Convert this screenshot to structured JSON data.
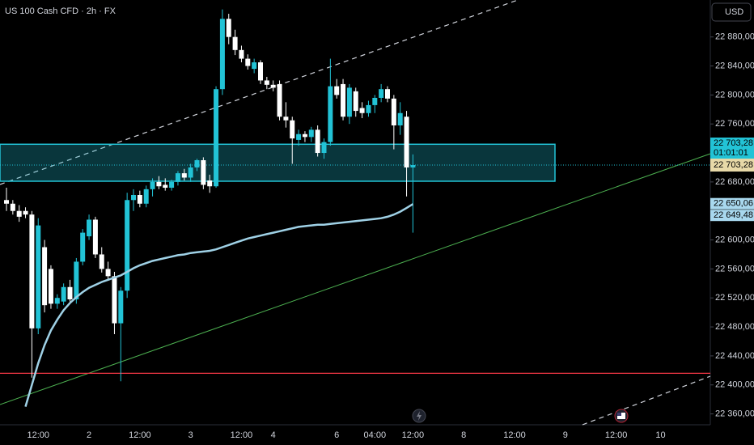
{
  "chart_data": {
    "type": "candlestick",
    "title": "US 100 Cash CFD · 2h · FX",
    "currency": "USD",
    "categories": [
      null,
      null,
      null,
      null,
      null,
      "12:00",
      null,
      null,
      null,
      null,
      null,
      null,
      null,
      "2",
      null,
      null,
      null,
      null,
      null,
      null,
      null,
      "12:00",
      null,
      null,
      null,
      null,
      null,
      null,
      null,
      "3",
      null,
      null,
      null,
      null,
      null,
      null,
      null,
      "12:00",
      null,
      null,
      null,
      null,
      "4",
      null,
      null,
      null,
      null,
      null,
      null,
      null,
      null,
      null,
      "6",
      null,
      null,
      null,
      null,
      null,
      "04:00",
      null,
      null,
      null,
      null,
      null,
      "12:00",
      null,
      null,
      null,
      null,
      null,
      null,
      null,
      "8",
      null,
      null,
      null,
      null,
      null,
      null,
      null,
      "12:00",
      null,
      null,
      null,
      null,
      null,
      null,
      null,
      "9",
      null,
      null,
      null,
      null,
      null,
      null,
      null,
      "12:00",
      null,
      null,
      null,
      null,
      null,
      null,
      "10"
    ],
    "open": [
      22655,
      22650,
      22640,
      22640,
      22635,
      22478,
      22590,
      22560,
      22512,
      22515,
      22535,
      22518,
      22570,
      22605,
      22628,
      22580,
      22560,
      22550,
      22485,
      22530,
      22655,
      22662,
      22650,
      22670,
      22680,
      22676,
      22672,
      22680,
      22692,
      22686,
      22700,
      22710,
      22682,
      22674,
      22808,
      22905,
      22880,
      22862,
      22850,
      22836,
      22845,
      22820,
      22814,
      22815,
      22770,
      22765,
      22738,
      22746,
      22742,
      22752,
      22720,
      22735,
      22812,
      22815,
      22770,
      22805,
      22782,
      22775,
      22786,
      22796,
      22808,
      22795,
      22758,
      22770,
      22700,
      null,
      null,
      null,
      null,
      null,
      null,
      null,
      null,
      null,
      null,
      null,
      null,
      null,
      null,
      null,
      null,
      null,
      null,
      null,
      null,
      null,
      null,
      null,
      null,
      null,
      null,
      null,
      null,
      null,
      null,
      null,
      null,
      null,
      null,
      null,
      null,
      null,
      null,
      null
    ],
    "high": [
      22672,
      22655,
      22648,
      22645,
      22640,
      22630,
      22600,
      22565,
      22525,
      22540,
      22545,
      22575,
      22615,
      22635,
      22632,
      22590,
      22570,
      22556,
      22535,
      22665,
      22670,
      22668,
      22675,
      22685,
      22688,
      22685,
      22683,
      22695,
      22698,
      22705,
      22712,
      22714,
      22690,
      22812,
      22918,
      22912,
      22890,
      22868,
      22856,
      22850,
      22848,
      22825,
      22820,
      22820,
      22790,
      22770,
      22752,
      22750,
      22756,
      22758,
      22740,
      22850,
      22822,
      22822,
      22815,
      22810,
      22790,
      22792,
      22800,
      22815,
      22812,
      22800,
      22790,
      22778,
      22718,
      null,
      null,
      null,
      null,
      null,
      null,
      null,
      null,
      null,
      null,
      null,
      null,
      null,
      null,
      null,
      null,
      null,
      null,
      null,
      null,
      null,
      null,
      null,
      null,
      null,
      null,
      null,
      null,
      null,
      null,
      null,
      null,
      null,
      null,
      null,
      null,
      null,
      null,
      null
    ],
    "low": [
      22640,
      22635,
      22625,
      22630,
      22410,
      22470,
      22500,
      22505,
      22505,
      22510,
      22515,
      22512,
      22565,
      22600,
      22575,
      22555,
      22545,
      22470,
      22405,
      22520,
      22640,
      22645,
      22645,
      22660,
      22670,
      22668,
      22668,
      22675,
      22682,
      22680,
      22695,
      22670,
      22665,
      22672,
      22800,
      22870,
      22855,
      22845,
      22835,
      22830,
      22815,
      22808,
      22805,
      22765,
      22755,
      22705,
      22730,
      22735,
      22735,
      22715,
      22712,
      22730,
      22795,
      22765,
      22760,
      22770,
      22768,
      22770,
      22775,
      22790,
      22790,
      22725,
      22745,
      22660,
      22610,
      null,
      null,
      null,
      null,
      null,
      null,
      null,
      null,
      null,
      null,
      null,
      null,
      null,
      null,
      null,
      null,
      null,
      null,
      null,
      null,
      null,
      null,
      null,
      null,
      null,
      null,
      null,
      null,
      null,
      null,
      null,
      null,
      null,
      null,
      null,
      null,
      null,
      null,
      null
    ],
    "close": [
      22650,
      22640,
      22632,
      22635,
      22478,
      22620,
      22510,
      22512,
      22520,
      22535,
      22518,
      22570,
      22610,
      22628,
      22580,
      22560,
      22550,
      22485,
      22530,
      22655,
      22662,
      22650,
      22670,
      22680,
      22674,
      22672,
      22680,
      22692,
      22686,
      22700,
      22710,
      22676,
      22674,
      22808,
      22905,
      22880,
      22862,
      22850,
      22840,
      22845,
      22820,
      22814,
      22810,
      22770,
      22765,
      22740,
      22746,
      22742,
      22752,
      22720,
      22735,
      22812,
      22800,
      22770,
      22810,
      22778,
      22775,
      22786,
      22796,
      22808,
      22795,
      22758,
      22775,
      22700,
      22703.28,
      null,
      null,
      null,
      null,
      null,
      null,
      null,
      null,
      null,
      null,
      null,
      null,
      null,
      null,
      null,
      null,
      null,
      null,
      null,
      null,
      null,
      null,
      null,
      null,
      null,
      null,
      null,
      null,
      null,
      null,
      null,
      null,
      null,
      null,
      null,
      null,
      null,
      null,
      null
    ],
    "ma": [
      null,
      null,
      null,
      22370,
      22400,
      22430,
      22455,
      22475,
      22490,
      22503,
      22513,
      22521,
      22528,
      22534,
      22538,
      22542,
      22545,
      22548,
      22551,
      22556,
      22561,
      22565,
      22568,
      22571,
      22573,
      22575,
      22577,
      22579,
      22580,
      22582,
      22583,
      22584,
      22585,
      22587,
      22590,
      22593,
      22596,
      22599,
      22602,
      22604,
      22606,
      22608,
      22610,
      22612,
      22614,
      22616,
      22618,
      22619,
      22620,
      22621,
      22621,
      22622,
      22623,
      22624,
      22625,
      22626,
      22627,
      22628,
      22629,
      22630,
      22632,
      22635,
      22639,
      22644,
      22649.48,
      null,
      null,
      null,
      null,
      null,
      null,
      null,
      null,
      null,
      null,
      null,
      null,
      null,
      null,
      null,
      null,
      null,
      null,
      null,
      null,
      null,
      null,
      null,
      null,
      null,
      null,
      null,
      null,
      null,
      null,
      null,
      null,
      null,
      null,
      null,
      null,
      null,
      null,
      null
    ],
    "up_color": "#22c3d6",
    "down_color": "#ffffff",
    "ma_color": "#9fd1e6",
    "zone": [
      22681,
      22732
    ],
    "support_line": 22416,
    "ylim": [
      22345,
      22931
    ],
    "yticks": [
      {
        "value": 22880,
        "label": "22 880,00"
      },
      {
        "value": 22840,
        "label": "22 840,00"
      },
      {
        "value": 22800,
        "label": "22 800,00"
      },
      {
        "value": 22760,
        "label": "22 760,00"
      },
      {
        "value": 22680,
        "label": "22 680,00"
      },
      {
        "value": 22600,
        "label": "22 600,00"
      },
      {
        "value": 22560,
        "label": "22 560,00"
      },
      {
        "value": 22520,
        "label": "22 520,00"
      },
      {
        "value": 22480,
        "label": "22 480,00"
      },
      {
        "value": 22440,
        "label": "22 440,00"
      },
      {
        "value": 22400,
        "label": "22 400,00"
      },
      {
        "value": 22360,
        "label": "22 360,00"
      }
    ],
    "last_price": {
      "value": 22703.28,
      "label": "22 703,28",
      "countdown": "01:01:01"
    },
    "price_marker": {
      "value": 22703.28,
      "label": "22 703,28"
    },
    "ma_labels": [
      {
        "value": 22650.06,
        "label": "22 650,06"
      },
      {
        "value": 22649.48,
        "label": "22 649,48"
      }
    ],
    "grid": false
  }
}
